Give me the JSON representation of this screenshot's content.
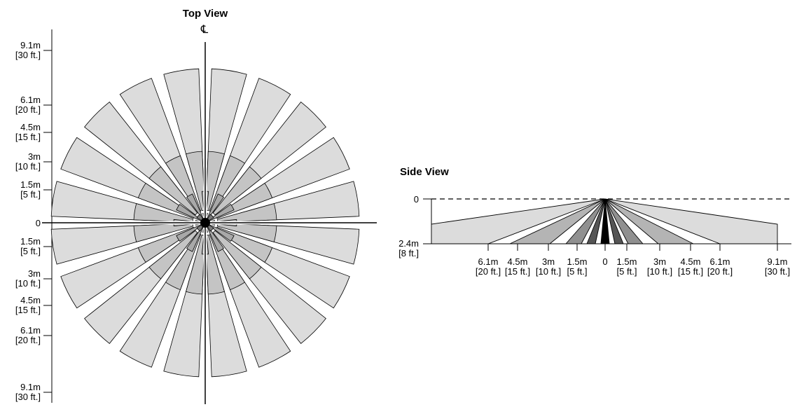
{
  "top_view": {
    "title": "Top View",
    "centerline_symbol": "℄",
    "scale_labels": [
      {
        "m": "9.1m",
        "ft": "[30 ft.]"
      },
      {
        "m": "6.1m",
        "ft": "[20 ft.]"
      },
      {
        "m": "4.5m",
        "ft": "[15 ft.]"
      },
      {
        "m": "3m",
        "ft": "[10 ft.]"
      },
      {
        "m": "1.5m",
        "ft": "[5 ft.]"
      },
      {
        "m": "0",
        "ft": ""
      },
      {
        "m": "1.5m",
        "ft": "[5 ft.]"
      },
      {
        "m": "3m",
        "ft": "[10 ft.]"
      },
      {
        "m": "4.5m",
        "ft": "[15 ft.]"
      },
      {
        "m": "6.1m",
        "ft": "[20 ft.]"
      },
      {
        "m": "9.1m",
        "ft": "[30 ft.]"
      }
    ],
    "zones": {
      "long_range_segments": 20,
      "mid_range_segments": 20,
      "short_range_segments": 12,
      "outer_radius_ft": 30,
      "mid_radius_ft": 15,
      "short_radius_ft": 5
    },
    "colors": {
      "long": "#dcdcdc",
      "mid": "#c4c4c4",
      "short": "#a8a8a8",
      "center": "#000000"
    }
  },
  "side_view": {
    "title": "Side View",
    "height_labels": [
      {
        "m": "0",
        "ft": ""
      },
      {
        "m": "2.4m",
        "ft": "[8 ft.]"
      }
    ],
    "distance_labels": [
      {
        "m": "6.1m",
        "ft": "[20 ft.]"
      },
      {
        "m": "4.5m",
        "ft": "[15 ft.]"
      },
      {
        "m": "3m",
        "ft": "[10 ft.]"
      },
      {
        "m": "1.5m",
        "ft": "[5 ft.]"
      },
      {
        "m": "0",
        "ft": ""
      },
      {
        "m": "1.5m",
        "ft": "[5 ft.]"
      },
      {
        "m": "3m",
        "ft": "[10 ft.]"
      },
      {
        "m": "4.5m",
        "ft": "[15 ft.]"
      },
      {
        "m": "6.1m",
        "ft": "[20 ft.]"
      },
      {
        "m": "9.1m",
        "ft": "[30 ft.]"
      }
    ],
    "colors": {
      "outer": "#dcdcdc",
      "mid": "#b4b4b4",
      "inner": "#909090",
      "near": "#555555",
      "center": "#000000"
    }
  }
}
